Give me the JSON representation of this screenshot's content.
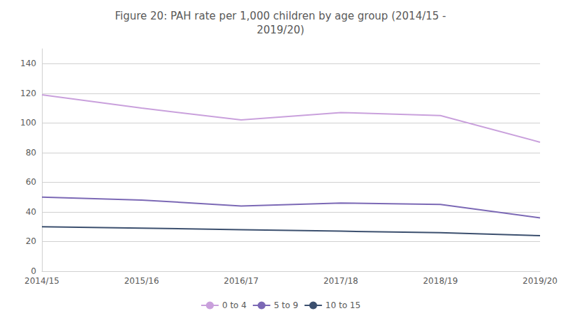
{
  "chart_data": {
    "type": "line",
    "title": "Figure 20: PAH rate per 1,000 children by age group (2014/15 -\n2019/20)",
    "categories": [
      "2014/15",
      "2015/16",
      "2016/17",
      "2017/18",
      "2018/19",
      "2019/20"
    ],
    "series": [
      {
        "name": "0 to 4",
        "color": "#c9a0dc",
        "values": [
          119,
          110,
          102,
          107,
          105,
          87
        ]
      },
      {
        "name": "5 to 9",
        "color": "#7b68b5",
        "values": [
          50,
          48,
          44,
          46,
          45,
          36
        ]
      },
      {
        "name": "10 to 15",
        "color": "#3b4f6e",
        "values": [
          30,
          29,
          28,
          27,
          26,
          24
        ]
      }
    ],
    "ylim": [
      0,
      150
    ],
    "yticks": [
      0,
      20,
      40,
      60,
      80,
      100,
      120,
      140
    ],
    "grid": true,
    "legend": "bottom"
  }
}
